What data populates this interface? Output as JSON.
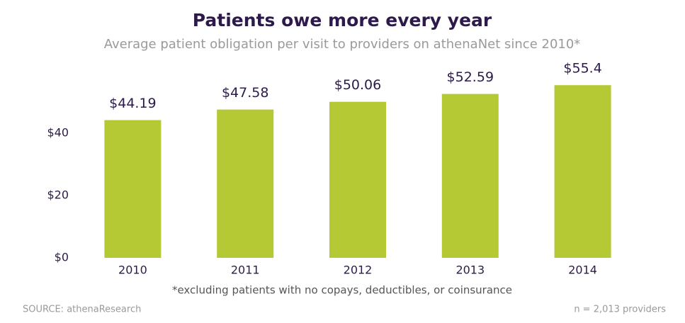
{
  "chart_data": {
    "type": "bar",
    "title": "Patients owe more every year",
    "subtitle": "Average patient obligation per visit to providers on athenaNet since 2010*",
    "categories": [
      "2010",
      "2011",
      "2012",
      "2013",
      "2014"
    ],
    "values": [
      44.19,
      47.58,
      50.06,
      52.59,
      55.4
    ],
    "value_labels": [
      "$44.19",
      "$47.58",
      "$50.06",
      "$52.59",
      "$55.4"
    ],
    "color": "#b5c935",
    "ylim": [
      0,
      60
    ],
    "yticks": [
      {
        "value": 0,
        "label": "$0"
      },
      {
        "value": 20,
        "label": "$20"
      },
      {
        "value": 40,
        "label": "$40"
      }
    ],
    "grid": false,
    "footnote": "*excluding patients with no copays, deductibles, or coinsurance",
    "source": "SOURCE: athenaResearch",
    "sample_note": "n = 2,013 providers"
  }
}
